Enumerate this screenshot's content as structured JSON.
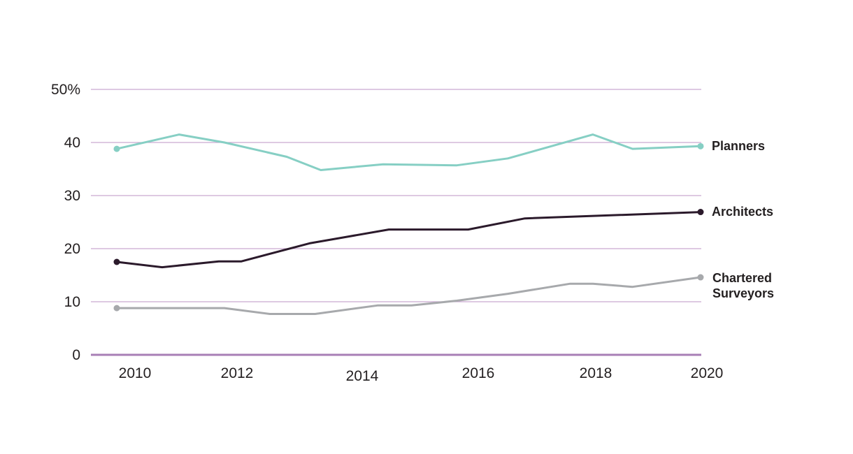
{
  "chart_data": {
    "type": "line",
    "title": "",
    "xlabel": "",
    "ylabel": "",
    "ylim": [
      0,
      50
    ],
    "xlim": [
      2009.7,
      2020
    ],
    "y_ticks": [
      0,
      10,
      20,
      30,
      40,
      50
    ],
    "y_tick_labels": [
      "0",
      "10",
      "20",
      "30",
      "40",
      "50%"
    ],
    "x_ticks": [
      2010,
      2012,
      2014,
      2016,
      2018,
      2020
    ],
    "x_tick_labels": [
      "2010",
      "2012",
      "2014",
      "2016",
      "2018",
      "2020"
    ],
    "grid": "horizontal",
    "legend": "inline labels at right end of lines",
    "series": [
      {
        "name": "Planners",
        "label_lines": [
          "Planners"
        ],
        "color": "#86cfc4",
        "x": [
          2009.7,
          2010.8,
          2011.6,
          2012.7,
          2013.3,
          2014.4,
          2015.7,
          2016.6,
          2018.1,
          2018.8,
          2020
        ],
        "y": [
          38.8,
          41.5,
          40.0,
          37.3,
          34.8,
          35.9,
          35.7,
          37.0,
          41.5,
          38.8,
          39.3
        ]
      },
      {
        "name": "Architects",
        "label_lines": [
          "Architects"
        ],
        "color": "#2b1a2b",
        "x": [
          2009.7,
          2010.5,
          2011.5,
          2011.9,
          2013.1,
          2013.8,
          2014.5,
          2015.9,
          2016.9,
          2020
        ],
        "y": [
          17.5,
          16.5,
          17.6,
          17.6,
          21.0,
          22.3,
          23.6,
          23.6,
          25.7,
          26.9
        ]
      },
      {
        "name": "Chartered Surveyors",
        "label_lines": [
          "Chartered",
          "Surveyors"
        ],
        "color": "#a7a9ac",
        "x": [
          2009.7,
          2011.6,
          2012.4,
          2013.2,
          2014.3,
          2014.9,
          2015.7,
          2016.6,
          2017.7,
          2018.1,
          2018.8,
          2020
        ],
        "y": [
          8.8,
          8.8,
          7.7,
          7.7,
          9.3,
          9.3,
          10.2,
          11.5,
          13.4,
          13.4,
          12.8,
          14.6
        ]
      }
    ],
    "colors": {
      "grid": "#c9a9d1",
      "axis": "#a87fb6",
      "text": "#231f20"
    }
  }
}
